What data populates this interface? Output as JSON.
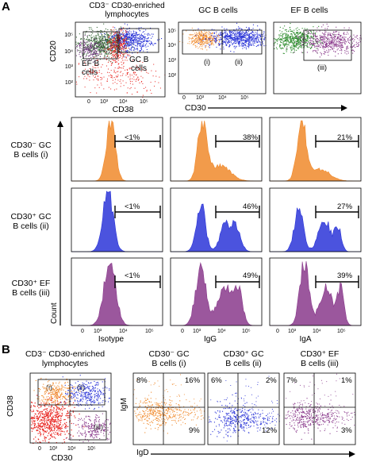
{
  "panel_a": {
    "letter": "A",
    "flow1": {
      "title_line1": "CD3⁻ CD30-enriched",
      "title_line2": "lymphocytes",
      "y_axis": "CD20",
      "x_axis": "CD38",
      "gate_ef": "EF B",
      "gate_ef2": "cells",
      "gate_gc": "GC B",
      "gate_gc2": "cells"
    },
    "flow2": {
      "title": "GC B cells",
      "gate1": "(i)",
      "gate2": "(ii)"
    },
    "flow3": {
      "title": "EF B cells",
      "gate3": "(iii)"
    },
    "flow_x_axis": "CD30",
    "rows": [
      {
        "label1": "CD30⁻ GC",
        "label2": "B cells (i)",
        "pcts": [
          "<1%",
          "38%",
          "21%"
        ]
      },
      {
        "label1": "CD30⁺ GC",
        "label2": "B cells (ii)",
        "pcts": [
          "<1%",
          "46%",
          "27%"
        ]
      },
      {
        "label1": "CD30⁺ EF",
        "label2": "B cells (iii)",
        "pcts": [
          "<1%",
          "49%",
          "39%"
        ]
      }
    ],
    "y_axis_count": "Count",
    "col_labels": [
      "Isotype",
      "IgG",
      "IgA"
    ]
  },
  "panel_b": {
    "letter": "B",
    "flow1": {
      "title_line1": "CD3⁻ CD30-enriched",
      "title_line2": "lymphocytes",
      "y_axis": "CD38",
      "x_axis": "CD30",
      "gate1": "(i)",
      "gate2": "(ii)",
      "gate3": "(iii)"
    },
    "quads": [
      {
        "title1": "CD30⁻ GC",
        "title2": "B cells (i)",
        "tl": "8%",
        "tr": "16%",
        "br": "9%"
      },
      {
        "title1": "CD30⁺ GC",
        "title2": "B cells (ii)",
        "tl": "6%",
        "tr": "2%",
        "br": "12%"
      },
      {
        "title1": "CD30⁺ EF",
        "title2": "B cells (iii)",
        "tl": "7%",
        "tr": "1%",
        "br": "3%"
      }
    ],
    "y_axis": "IgM",
    "x_axis": "IgD"
  },
  "ticks": {
    "y5": "10⁵",
    "y4": "10⁴",
    "y3": "10³",
    "y2": "10²",
    "zero": "0",
    "x3": "10³",
    "x4": "10⁴",
    "x5": "10⁵"
  },
  "colors": {
    "orange": "#f08a2c",
    "blue": "#2b35d8",
    "purple": "#8a3a8c",
    "green": "#2a8a2a",
    "red": "#e8211c"
  }
}
